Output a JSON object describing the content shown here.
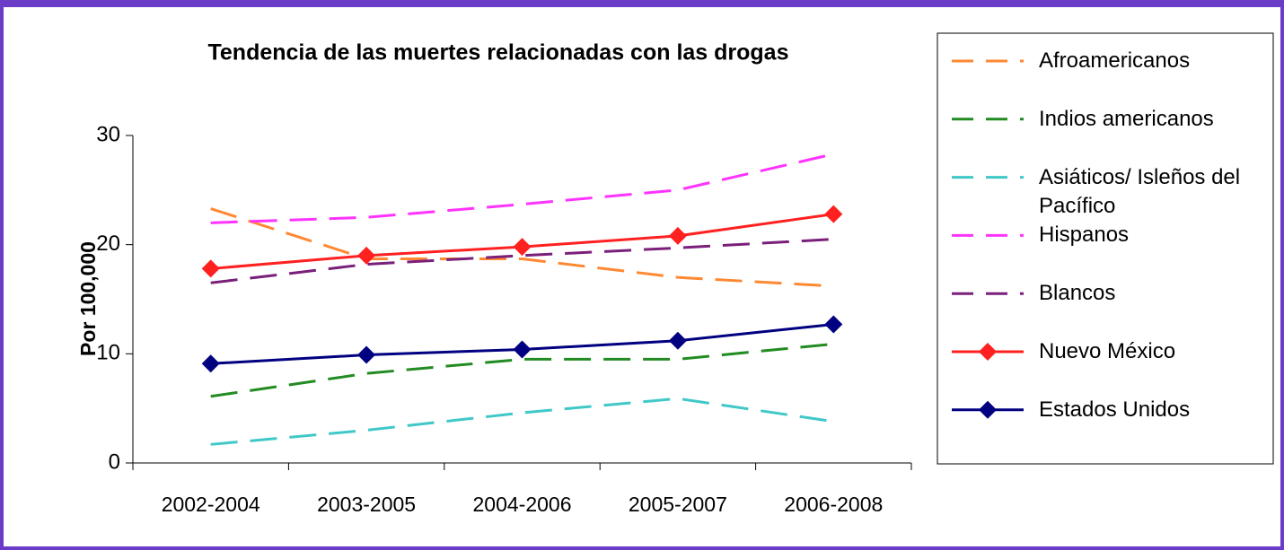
{
  "chart_data": {
    "type": "line",
    "title": "Tendencia de las muertes relacionadas con las drogas",
    "y_label": "Por 100,000",
    "categories": [
      "2002-2004",
      "2003-2005",
      "2004-2006",
      "2005-2007",
      "2006-2008"
    ],
    "ylim": [
      0,
      30
    ],
    "yticks": [
      0,
      10,
      20,
      30
    ],
    "legend": "right",
    "series": [
      {
        "name": "Afroamericanos",
        "color": "#ff8833",
        "style": "dashed",
        "values": [
          23.3,
          18.7,
          18.7,
          17.0,
          16.2
        ]
      },
      {
        "name": "Indios americanos",
        "color": "#228b22",
        "style": "dashed",
        "values": [
          6.1,
          8.2,
          9.5,
          9.5,
          10.9
        ]
      },
      {
        "name": "Asiáticos/ Isleños del Pacífico",
        "color": "#40c8c8",
        "style": "dashed",
        "values": [
          1.7,
          3.0,
          4.6,
          5.9,
          3.8
        ]
      },
      {
        "name": "Hispanos",
        "color": "#ff33ff",
        "style": "dashed",
        "values": [
          22.0,
          22.5,
          23.7,
          25.0,
          28.3
        ]
      },
      {
        "name": "Blancos",
        "color": "#7a1f7a",
        "style": "dashed",
        "values": [
          16.5,
          18.2,
          19.0,
          19.7,
          20.5
        ]
      },
      {
        "name": "Nuevo México",
        "color": "#ff2020",
        "style": "solid",
        "marker": "diamond",
        "values": [
          17.8,
          19.0,
          19.8,
          20.8,
          22.8
        ]
      },
      {
        "name": "Estados Unidos",
        "color": "#000080",
        "style": "solid",
        "marker": "diamond",
        "values": [
          9.1,
          9.9,
          10.4,
          11.2,
          12.7
        ]
      }
    ]
  }
}
